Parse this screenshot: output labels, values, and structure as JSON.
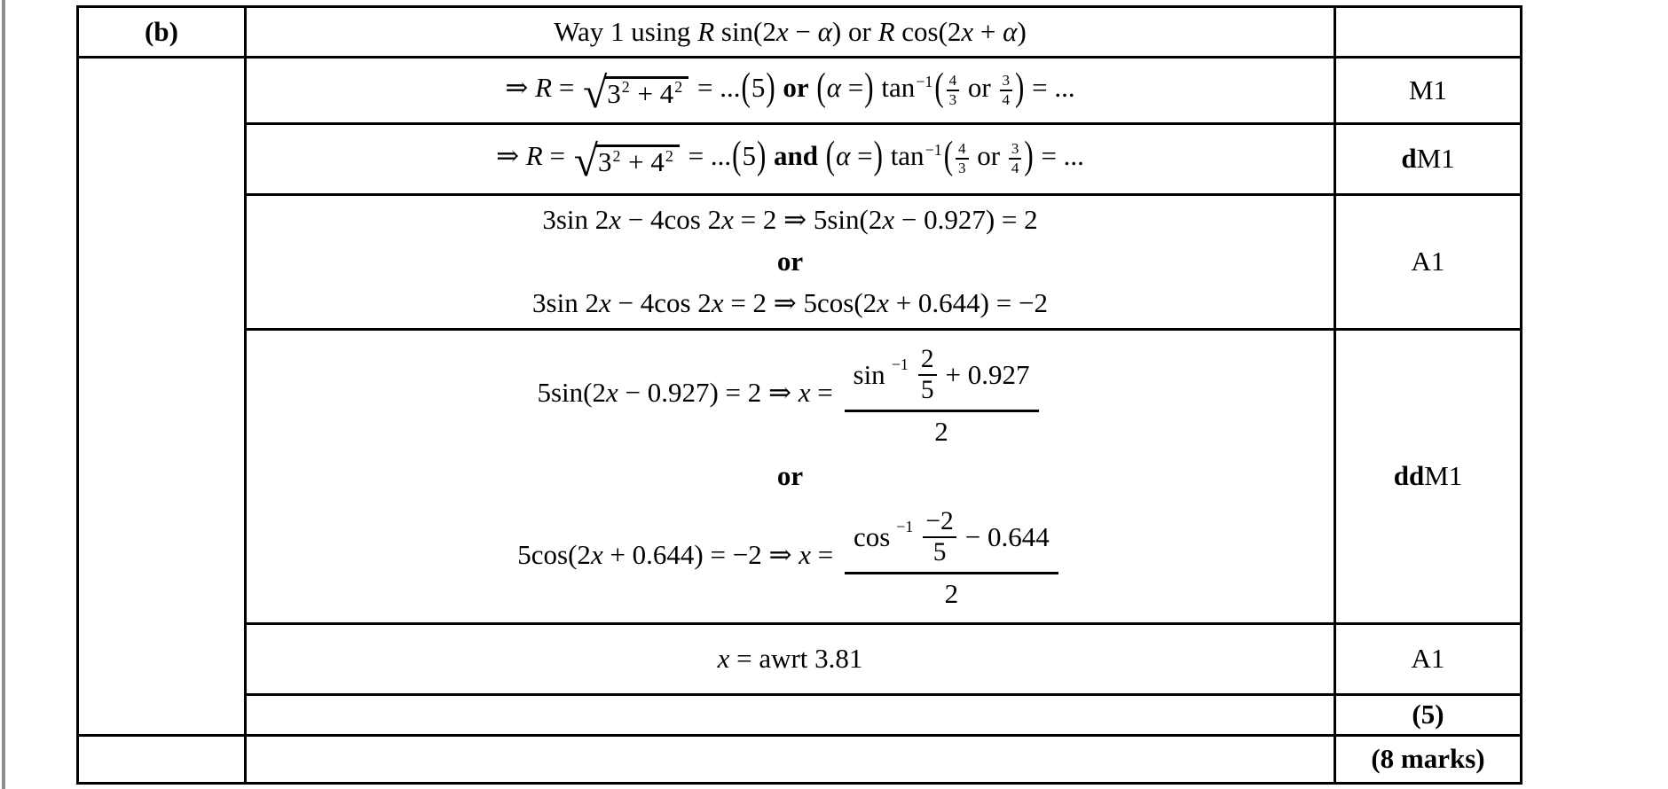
{
  "colors": {
    "border": "#000000",
    "background": "#ffffff",
    "page_edge": "#8f8f8f",
    "text": "#000000"
  },
  "symbols": {
    "radical": "√"
  },
  "cells": {
    "b_label": "(b)"
  },
  "formulas": {
    "way_title": [
      {
        "t": "rm",
        "v": "Way 1 using "
      },
      {
        "t": "it",
        "v": "R"
      },
      {
        "t": "rm",
        "v": " sin(2"
      },
      {
        "t": "it",
        "v": "x"
      },
      {
        "t": "rm",
        "v": " − "
      },
      {
        "t": "it",
        "v": "α"
      },
      {
        "t": "rm",
        "v": ")  or  "
      },
      {
        "t": "it",
        "v": "R"
      },
      {
        "t": "rm",
        "v": " cos(2"
      },
      {
        "t": "it",
        "v": "x"
      },
      {
        "t": "rm",
        "v": " + "
      },
      {
        "t": "it",
        "v": "α"
      },
      {
        "t": "rm",
        "v": ")"
      }
    ],
    "m1_line": [
      {
        "t": "rm",
        "v": "⇒ "
      },
      {
        "t": "it",
        "v": "R"
      },
      {
        "t": "rm",
        "v": " = "
      },
      {
        "t": "sqrt",
        "v": [
          {
            "t": "rm",
            "v": "3"
          },
          {
            "t": "sup",
            "v": "2"
          },
          {
            "t": "rm",
            "v": " + 4"
          },
          {
            "t": "sup",
            "v": "2"
          }
        ]
      },
      {
        "t": "rm",
        "v": " = ..."
      },
      {
        "t": "tp",
        "v": "("
      },
      {
        "t": "rm",
        "v": "5"
      },
      {
        "t": "tp",
        "v": ")"
      },
      {
        "t": "rm",
        "v": " "
      },
      {
        "t": "bf",
        "v": "or"
      },
      {
        "t": "rm",
        "v": " "
      },
      {
        "t": "tp",
        "v": "("
      },
      {
        "t": "it",
        "v": "α"
      },
      {
        "t": "rm",
        "v": " ="
      },
      {
        "t": "tp",
        "v": ")"
      },
      {
        "t": "rm",
        "v": " tan"
      },
      {
        "t": "sup",
        "v": "−1"
      },
      {
        "t": "tp",
        "v": "("
      },
      {
        "t": "frac",
        "n": "4",
        "d": "3",
        "s": "small"
      },
      {
        "t": "rm",
        "v": " or "
      },
      {
        "t": "frac",
        "n": "3",
        "d": "4",
        "s": "small"
      },
      {
        "t": "tp",
        "v": ")"
      },
      {
        "t": "rm",
        "v": " = ..."
      }
    ],
    "dm1_line": [
      {
        "t": "rm",
        "v": "⇒ "
      },
      {
        "t": "it",
        "v": "R"
      },
      {
        "t": "rm",
        "v": " = "
      },
      {
        "t": "sqrt",
        "v": [
          {
            "t": "rm",
            "v": "3"
          },
          {
            "t": "sup",
            "v": "2"
          },
          {
            "t": "rm",
            "v": " + 4"
          },
          {
            "t": "sup",
            "v": "2"
          }
        ]
      },
      {
        "t": "rm",
        "v": " = ..."
      },
      {
        "t": "tp",
        "v": "("
      },
      {
        "t": "rm",
        "v": "5"
      },
      {
        "t": "tp",
        "v": ")"
      },
      {
        "t": "rm",
        "v": " "
      },
      {
        "t": "bf",
        "v": "and"
      },
      {
        "t": "rm",
        "v": " "
      },
      {
        "t": "tp",
        "v": "("
      },
      {
        "t": "it",
        "v": "α"
      },
      {
        "t": "rm",
        "v": " ="
      },
      {
        "t": "tp",
        "v": ")"
      },
      {
        "t": "rm",
        "v": " tan"
      },
      {
        "t": "sup",
        "v": "−1"
      },
      {
        "t": "tp",
        "v": "("
      },
      {
        "t": "frac",
        "n": "4",
        "d": "3",
        "s": "small"
      },
      {
        "t": "rm",
        "v": " or "
      },
      {
        "t": "frac",
        "n": "3",
        "d": "4",
        "s": "small"
      },
      {
        "t": "tp",
        "v": ")"
      },
      {
        "t": "rm",
        "v": " = ..."
      }
    ],
    "a1_l1": [
      {
        "t": "rm",
        "v": "3sin 2"
      },
      {
        "t": "it",
        "v": "x"
      },
      {
        "t": "rm",
        "v": " − 4cos 2"
      },
      {
        "t": "it",
        "v": "x"
      },
      {
        "t": "rm",
        "v": " = 2 ⇒ 5sin(2"
      },
      {
        "t": "it",
        "v": "x"
      },
      {
        "t": "rm",
        "v": " − 0.927) = 2"
      }
    ],
    "or_word": [
      {
        "t": "bf",
        "v": "or"
      }
    ],
    "a1_l2": [
      {
        "t": "rm",
        "v": "3sin 2"
      },
      {
        "t": "it",
        "v": "x"
      },
      {
        "t": "rm",
        "v": " − 4cos 2"
      },
      {
        "t": "it",
        "v": "x"
      },
      {
        "t": "rm",
        "v": " = 2 ⇒ 5cos(2"
      },
      {
        "t": "it",
        "v": "x"
      },
      {
        "t": "rm",
        "v": " + 0.644) = −2"
      }
    ],
    "ddm1_l1": [
      {
        "t": "rm",
        "v": "5sin(2"
      },
      {
        "t": "it",
        "v": "x"
      },
      {
        "t": "rm",
        "v": " − 0.927) = 2 ⇒ "
      },
      {
        "t": "it",
        "v": "x"
      },
      {
        "t": "rm",
        "v": " = "
      },
      {
        "t": "bigfrac",
        "n": [
          {
            "t": "rm",
            "v": "sin"
          },
          {
            "t": "sup",
            "v": "−1"
          },
          {
            "t": "frac",
            "n": "2",
            "d": "5",
            "s": "med"
          },
          {
            "t": "rm",
            "v": "+ 0.927"
          }
        ],
        "d": [
          {
            "t": "rm",
            "v": "2"
          }
        ]
      }
    ],
    "ddm1_l2": [
      {
        "t": "rm",
        "v": "5cos(2"
      },
      {
        "t": "it",
        "v": "x"
      },
      {
        "t": "rm",
        "v": " + 0.644) = −2 ⇒ "
      },
      {
        "t": "it",
        "v": "x"
      },
      {
        "t": "rm",
        "v": " = "
      },
      {
        "t": "bigfrac",
        "n": [
          {
            "t": "rm",
            "v": "cos"
          },
          {
            "t": "sup",
            "v": "−1"
          },
          {
            "t": "frac",
            "n": "−2",
            "d": "5",
            "s": "med"
          },
          {
            "t": "rm",
            "v": "− 0.644"
          }
        ],
        "d": [
          {
            "t": "rm",
            "v": "2"
          }
        ]
      }
    ],
    "awrt": [
      {
        "t": "it",
        "v": "x"
      },
      {
        "t": "rm",
        "v": " = awrt 3.81"
      }
    ]
  },
  "marks": {
    "m1": [
      {
        "t": "rm",
        "v": "M1"
      }
    ],
    "dm1": [
      {
        "t": "bf",
        "v": "d"
      },
      {
        "t": "rm",
        "v": "M1"
      }
    ],
    "a1": [
      {
        "t": "rm",
        "v": "A1"
      }
    ],
    "ddm1": [
      {
        "t": "bf",
        "v": "dd"
      },
      {
        "t": "rm",
        "v": "M1"
      }
    ],
    "a1_final": [
      {
        "t": "rm",
        "v": "A1"
      }
    ],
    "subtotal": [
      {
        "t": "bf",
        "v": "(5)"
      }
    ],
    "total": [
      {
        "t": "bf",
        "v": "(8 marks)"
      }
    ]
  }
}
